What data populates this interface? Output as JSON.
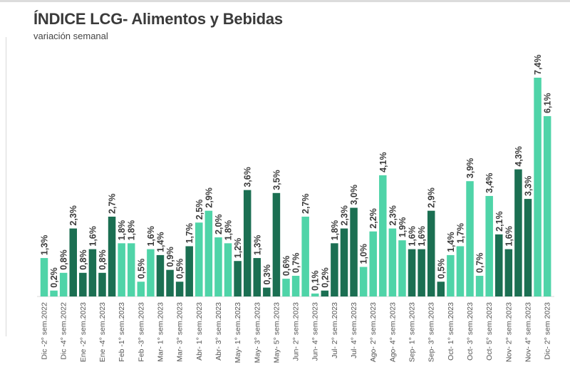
{
  "chart_data": {
    "type": "bar",
    "title": "ÍNDICE LCG- Alimentos y Bebidas",
    "subtitle": "variación semanal",
    "xlabel": "",
    "ylabel": "",
    "ylim": [
      0,
      7.6
    ],
    "grid": false,
    "value_format": "percent, comma decimal",
    "colors": {
      "light": "#4fd4a8",
      "dark": "#1b6f52"
    },
    "categories": [
      "Dic -2° sem.2022",
      "",
      "Dic -4° sem.2022",
      "",
      "Ene -2° sem.2023",
      "",
      "Ene -4° sem.2023",
      "",
      "Feb -1° sem.2023",
      "",
      "Feb -3° sem.2023",
      "",
      "Mar- 1° sem.2023",
      "",
      "Mar- 3° sem.2023",
      "",
      "Abr- 1° sem.2023",
      "",
      "Abr- 3° sem.2023",
      "",
      "May- 1° sem.2023",
      "",
      "May- 3° sem.2023",
      "",
      "May- 5° sem.2023",
      "",
      "Jun- 2° sem.2023",
      "",
      "Jun- 4° sem.2023",
      "",
      "Jul- 2° sem.2023",
      "",
      "Jul- 4° sem.2023",
      "",
      "Ago- 2° sem.2023",
      "",
      "Ago- 4° sem.2023",
      "",
      "Sep- 1° sem.2023",
      "",
      "Sep- 3° sem.2023",
      "",
      "Oct- 1° sem.2023",
      "",
      "Oct- 3° sem.2023",
      "",
      "Oct- 5° sem.2023",
      "",
      "Nov- 2° sem.2023",
      "",
      "Nov- 4° sem.2023",
      "",
      "Dic- 2° sem 2023"
    ],
    "values": [
      1.3,
      0.2,
      0.8,
      2.3,
      0.8,
      1.6,
      0.8,
      2.7,
      1.8,
      1.8,
      0.5,
      1.6,
      1.4,
      0.9,
      0.5,
      1.7,
      2.5,
      2.9,
      2.0,
      1.8,
      1.2,
      3.6,
      1.3,
      0.3,
      3.5,
      0.6,
      0.7,
      2.7,
      0.1,
      0.2,
      1.8,
      2.3,
      3.0,
      1.0,
      2.2,
      4.1,
      2.3,
      1.9,
      1.6,
      1.6,
      2.9,
      0.5,
      1.4,
      1.7,
      3.9,
      0.7,
      3.4,
      2.1,
      1.6,
      4.3,
      3.3,
      7.4,
      6.1
    ],
    "labels": [
      "1,3%",
      "0,2%",
      "0,8%",
      "2,3%",
      "0,8%",
      "1,6%",
      "0,8%",
      "2,7%",
      "1,8%",
      "1,8%",
      "0,5%",
      "1,6%",
      "1,4%",
      "0,9%",
      "0,5%",
      "1,7%",
      "2,5%",
      "2,9%",
      "2,0%",
      "1,8%",
      "1,2%",
      "3,6%",
      "1,3%",
      "0,3%",
      "3,5%",
      "0,6%",
      "0,7%",
      "2,7%",
      "0,1%",
      "0,2%",
      "1,8%",
      "2,3%",
      "3,0%",
      "1,0%",
      "2,2%",
      "4,1%",
      "2,3%",
      "1,9%",
      "1,6%",
      "1,6%",
      "2,9%",
      "0,5%",
      "1,4%",
      "1,7%",
      "3,9%",
      "0,7%",
      "3,4%",
      "2,1%",
      "1,6%",
      "4,3%",
      "3,3%",
      "7,4%",
      "6,1%"
    ],
    "shade": [
      "light",
      "light",
      "light",
      "dark",
      "dark",
      "dark",
      "dark",
      "dark",
      "light",
      "light",
      "light",
      "light",
      "dark",
      "dark",
      "dark",
      "dark",
      "light",
      "light",
      "light",
      "light",
      "dark",
      "dark",
      "dark",
      "dark",
      "dark",
      "light",
      "light",
      "light",
      "light",
      "dark",
      "dark",
      "dark",
      "dark",
      "light",
      "light",
      "light",
      "light",
      "light",
      "dark",
      "dark",
      "dark",
      "dark",
      "light",
      "light",
      "light",
      "light",
      "light",
      "dark",
      "dark",
      "dark",
      "dark",
      "light",
      "light"
    ]
  }
}
